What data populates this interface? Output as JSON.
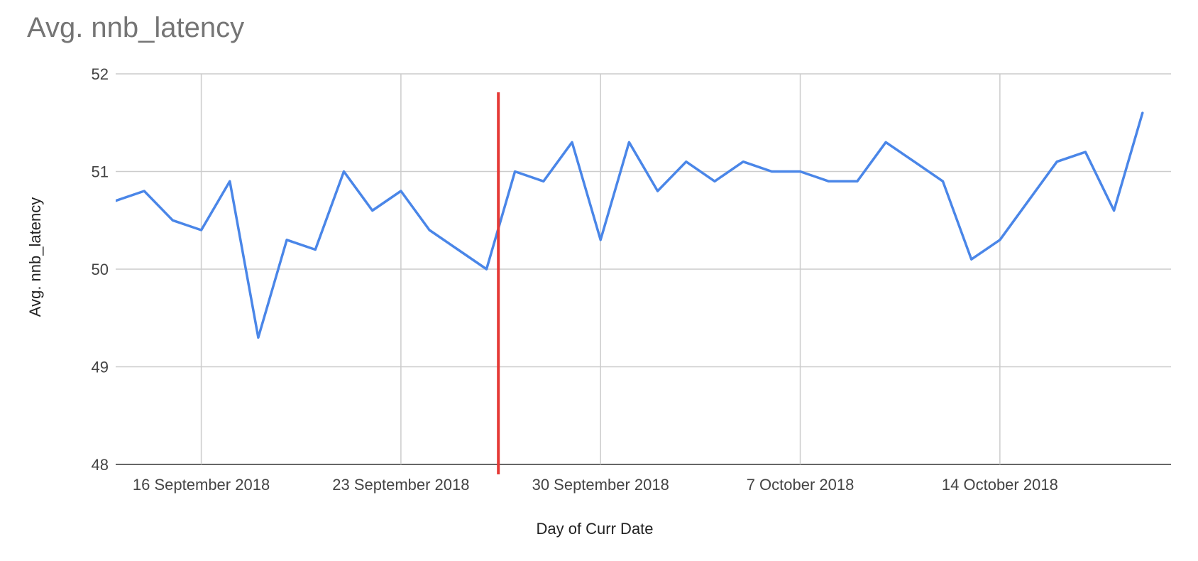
{
  "chart_data": {
    "type": "line",
    "title": "Avg. nnb_latency",
    "xlabel": "Day of Curr Date",
    "ylabel": "Avg. nnb_latency",
    "ylim": [
      48,
      52
    ],
    "y_ticks": [
      48,
      49,
      50,
      51,
      52
    ],
    "grid": true,
    "legend": "none",
    "x_tick_labels": [
      {
        "date": "2018-09-16",
        "label": "16 September 2018"
      },
      {
        "date": "2018-09-23",
        "label": "23 September 2018"
      },
      {
        "date": "2018-09-30",
        "label": "30 September 2018"
      },
      {
        "date": "2018-10-07",
        "label": "7 October 2018"
      },
      {
        "date": "2018-10-14",
        "label": "14 October 2018"
      }
    ],
    "xlim": [
      "2018-09-13",
      "2018-10-20"
    ],
    "series": [
      {
        "color": "#4a86e8",
        "points": [
          {
            "x": "2018-09-13",
            "y": 50.7
          },
          {
            "x": "2018-09-14",
            "y": 50.8
          },
          {
            "x": "2018-09-15",
            "y": 50.5
          },
          {
            "x": "2018-09-16",
            "y": 50.4
          },
          {
            "x": "2018-09-17",
            "y": 50.9
          },
          {
            "x": "2018-09-18",
            "y": 49.3
          },
          {
            "x": "2018-09-19",
            "y": 50.3
          },
          {
            "x": "2018-09-20",
            "y": 50.2
          },
          {
            "x": "2018-09-21",
            "y": 51.0
          },
          {
            "x": "2018-09-22",
            "y": 50.6
          },
          {
            "x": "2018-09-23",
            "y": 50.8
          },
          {
            "x": "2018-09-24",
            "y": 50.4
          },
          {
            "x": "2018-09-25",
            "y": 50.2
          },
          {
            "x": "2018-09-26",
            "y": 50.0
          },
          {
            "x": "2018-09-27",
            "y": 51.0
          },
          {
            "x": "2018-09-28",
            "y": 50.9
          },
          {
            "x": "2018-09-29",
            "y": 51.3
          },
          {
            "x": "2018-09-30",
            "y": 50.3
          },
          {
            "x": "2018-10-01",
            "y": 51.3
          },
          {
            "x": "2018-10-02",
            "y": 50.8
          },
          {
            "x": "2018-10-03",
            "y": 51.1
          },
          {
            "x": "2018-10-04",
            "y": 50.9
          },
          {
            "x": "2018-10-05",
            "y": 51.1
          },
          {
            "x": "2018-10-06",
            "y": 51.0
          },
          {
            "x": "2018-10-07",
            "y": 51.0
          },
          {
            "x": "2018-10-08",
            "y": 50.9
          },
          {
            "x": "2018-10-09",
            "y": 50.9
          },
          {
            "x": "2018-10-10",
            "y": 51.3
          },
          {
            "x": "2018-10-11",
            "y": 51.1
          },
          {
            "x": "2018-10-12",
            "y": 50.9
          },
          {
            "x": "2018-10-13",
            "y": 50.1
          },
          {
            "x": "2018-10-14",
            "y": 50.3
          },
          {
            "x": "2018-10-15",
            "y": 50.7
          },
          {
            "x": "2018-10-16",
            "y": 51.1
          },
          {
            "x": "2018-10-17",
            "y": 51.2
          },
          {
            "x": "2018-10-18",
            "y": 50.6
          },
          {
            "x": "2018-10-19",
            "y": 51.6
          }
        ]
      }
    ],
    "annotations": [
      {
        "type": "vertical-line",
        "x": "2018-09-26T10:00",
        "color": "#e53935"
      }
    ]
  }
}
